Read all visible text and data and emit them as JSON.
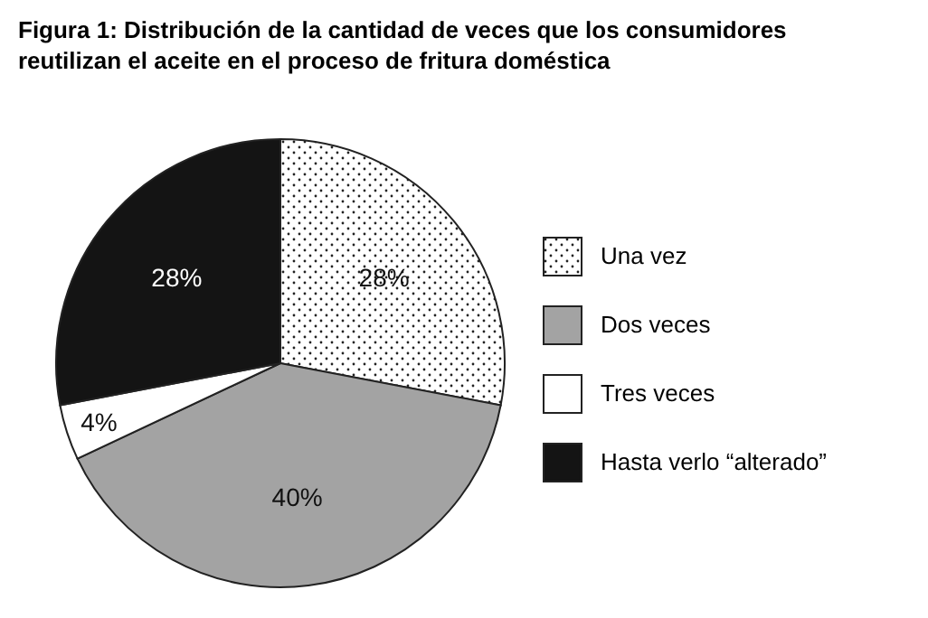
{
  "chart_data": {
    "type": "pie",
    "title": "Figura 1: Distribución de la cantidad de veces que los consumidores reutilizan el aceite en el proceso de fritura doméstica",
    "categories": [
      "Una vez",
      "Dos veces",
      "Tres veces",
      "Hasta verlo “alterado”"
    ],
    "values": [
      28,
      40,
      4,
      28
    ],
    "colors": [
      "#ffffff",
      "#a3a3a3",
      "#ffffff",
      "#141414"
    ],
    "value_labels": [
      "28%",
      "40%",
      "4%",
      "28%"
    ],
    "legend": "right"
  }
}
